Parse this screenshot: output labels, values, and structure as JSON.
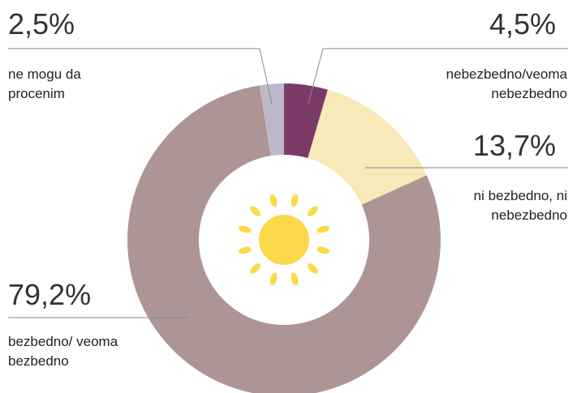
{
  "chart_data": {
    "type": "donut",
    "categories": [
      "nebezbedno/veoma nebezbedno",
      "ni bezbedno, ni nebezbedno",
      "bezbedno/ veoma bezbedno",
      "ne mogu da procenim"
    ],
    "values": [
      4.5,
      13.7,
      79.2,
      2.5
    ],
    "value_labels": [
      "4,5%",
      "13,7%",
      "79,2%",
      "2,5%"
    ],
    "colors": [
      "#7b3a68",
      "#f7e9b8",
      "#ad9596",
      "#bdb8c9"
    ]
  }
}
